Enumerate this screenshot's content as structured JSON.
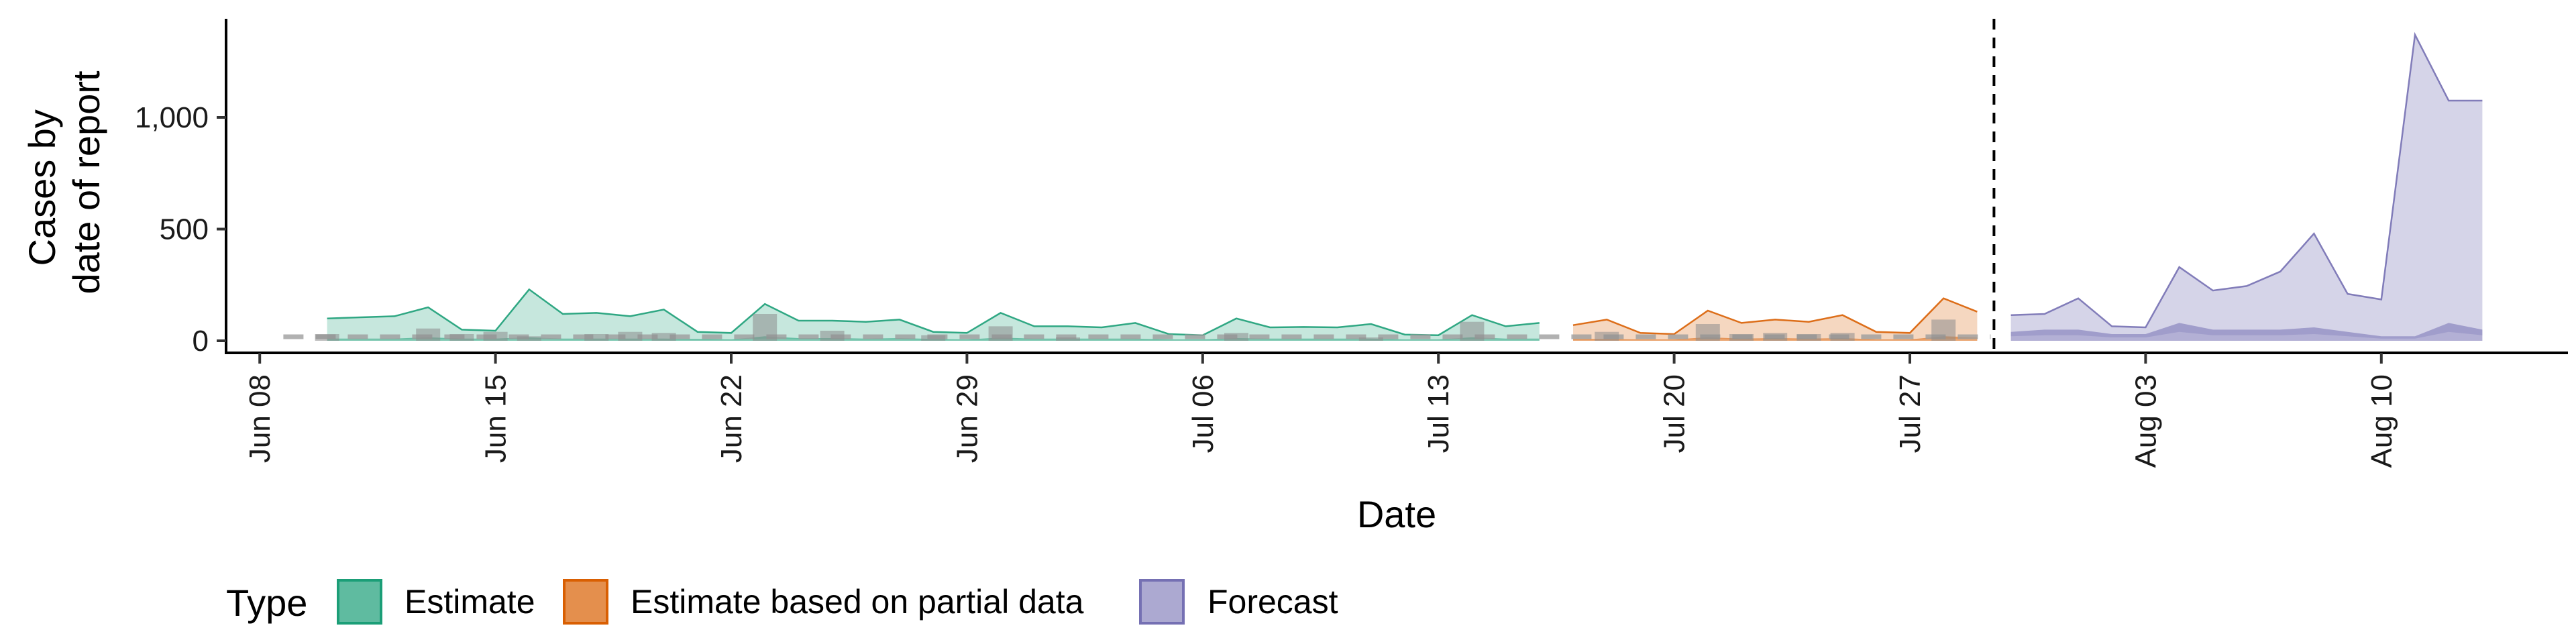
{
  "chart_data": {
    "type": "area",
    "xlabel": "Date",
    "ylabel_lines": [
      "Cases by",
      "date of report"
    ],
    "ylim": [
      0,
      1400
    ],
    "y_ticks": [
      0,
      500,
      1000
    ],
    "y_tick_labels": [
      "0",
      "500",
      "1,000"
    ],
    "xlim": [
      "2020-06-07",
      "2020-08-14"
    ],
    "x_ticks": [
      "2020-06-08",
      "2020-06-15",
      "2020-06-22",
      "2020-06-29",
      "2020-07-06",
      "2020-07-13",
      "2020-07-20",
      "2020-07-27",
      "2020-08-03",
      "2020-08-10"
    ],
    "x_tick_labels": [
      "Jun 08",
      "Jun 15",
      "Jun 22",
      "Jun 29",
      "Jul 06",
      "Jul 13",
      "Jul 20",
      "Jul 27",
      "Aug 03",
      "Aug 10"
    ],
    "forecast_date": "2020-07-29",
    "legend": {
      "title": "Type",
      "position": "bottom",
      "items": [
        {
          "label": "Estimate",
          "color": "#1b9e77"
        },
        {
          "label": "Estimate based on partial data",
          "color": "#d95f02"
        },
        {
          "label": "Forecast",
          "color": "#7570b3"
        }
      ]
    },
    "series": [
      {
        "name": "Estimate",
        "color": "#1b9e77",
        "dates": [
          "2020-06-10",
          "2020-06-11",
          "2020-06-12",
          "2020-06-13",
          "2020-06-14",
          "2020-06-15",
          "2020-06-16",
          "2020-06-17",
          "2020-06-18",
          "2020-06-19",
          "2020-06-20",
          "2020-06-21",
          "2020-06-22",
          "2020-06-23",
          "2020-06-24",
          "2020-06-25",
          "2020-06-26",
          "2020-06-27",
          "2020-06-28",
          "2020-06-29",
          "2020-06-30",
          "2020-07-01",
          "2020-07-02",
          "2020-07-03",
          "2020-07-04",
          "2020-07-05",
          "2020-07-06",
          "2020-07-07",
          "2020-07-08",
          "2020-07-09",
          "2020-07-10",
          "2020-07-11",
          "2020-07-12",
          "2020-07-13",
          "2020-07-14",
          "2020-07-15",
          "2020-07-16"
        ],
        "upper": [
          100,
          105,
          110,
          150,
          50,
          45,
          230,
          120,
          125,
          110,
          140,
          40,
          35,
          165,
          90,
          90,
          85,
          95,
          40,
          35,
          125,
          65,
          65,
          60,
          80,
          30,
          25,
          100,
          60,
          62,
          60,
          75,
          28,
          25,
          115,
          65,
          80
        ],
        "lower": [
          5,
          5,
          5,
          8,
          5,
          5,
          8,
          5,
          5,
          5,
          5,
          4,
          3,
          10,
          6,
          6,
          5,
          6,
          4,
          3,
          7,
          5,
          5,
          5,
          5,
          3,
          3,
          6,
          5,
          5,
          5,
          5,
          3,
          3,
          8,
          5,
          5
        ]
      },
      {
        "name": "Estimate based on partial data",
        "color": "#d95f02",
        "dates": [
          "2020-07-17",
          "2020-07-18",
          "2020-07-19",
          "2020-07-20",
          "2020-07-21",
          "2020-07-22",
          "2020-07-23",
          "2020-07-24",
          "2020-07-25",
          "2020-07-26",
          "2020-07-27",
          "2020-07-28",
          "2020-07-29"
        ],
        "upper": [
          70,
          95,
          35,
          30,
          135,
          80,
          95,
          85,
          115,
          40,
          35,
          190,
          130
        ],
        "lower": [
          4,
          4,
          3,
          3,
          8,
          5,
          6,
          5,
          6,
          3,
          3,
          10,
          8
        ]
      },
      {
        "name": "Forecast",
        "color": "#7570b3",
        "dates": [
          "2020-07-30",
          "2020-07-31",
          "2020-08-01",
          "2020-08-02",
          "2020-08-03",
          "2020-08-04",
          "2020-08-05",
          "2020-08-06",
          "2020-08-07",
          "2020-08-08",
          "2020-08-09",
          "2020-08-10",
          "2020-08-11",
          "2020-08-12",
          "2020-08-13"
        ],
        "upper": [
          115,
          120,
          190,
          65,
          60,
          330,
          225,
          245,
          310,
          480,
          210,
          185,
          1370,
          1075,
          1075
        ],
        "lower": [
          20,
          25,
          25,
          15,
          15,
          40,
          25,
          25,
          25,
          30,
          20,
          10,
          10,
          40,
          25
        ]
      }
    ],
    "reported_cases": {
      "dates": [
        "2020-06-10",
        "2020-06-13",
        "2020-06-14",
        "2020-06-15",
        "2020-06-16",
        "2020-06-18",
        "2020-06-19",
        "2020-06-20",
        "2020-06-23",
        "2020-06-25",
        "2020-06-28",
        "2020-06-30",
        "2020-07-02",
        "2020-07-07",
        "2020-07-11",
        "2020-07-14",
        "2020-07-18",
        "2020-07-21",
        "2020-07-22",
        "2020-07-23",
        "2020-07-24",
        "2020-07-25",
        "2020-07-28"
      ],
      "values": [
        30,
        55,
        30,
        40,
        20,
        30,
        40,
        35,
        120,
        45,
        25,
        65,
        15,
        35,
        15,
        85,
        40,
        75,
        30,
        35,
        30,
        35,
        95
      ]
    }
  }
}
